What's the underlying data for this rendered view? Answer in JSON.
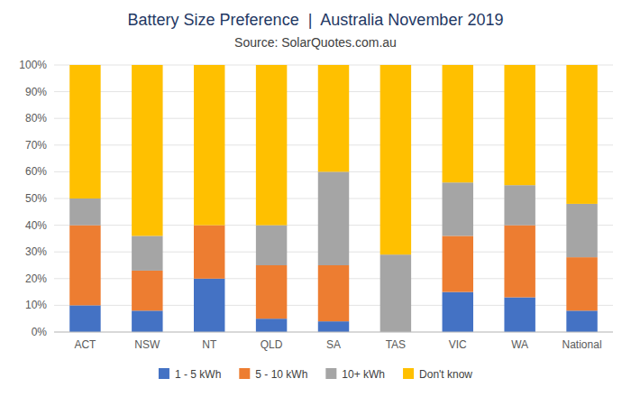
{
  "chart_data": {
    "type": "bar",
    "stacked": true,
    "title": "Battery Size Preference  |  Australia November 2019",
    "subtitle": "Source: SolarQuotes.com.au",
    "categories": [
      "ACT",
      "NSW",
      "NT",
      "QLD",
      "SA",
      "TAS",
      "VIC",
      "WA",
      "National"
    ],
    "series": [
      {
        "name": "1 - 5 kWh",
        "color": "#4472C4",
        "values": [
          10,
          8,
          20,
          5,
          4,
          0,
          15,
          13,
          8
        ]
      },
      {
        "name": "5 - 10 kWh",
        "color": "#ED7D31",
        "values": [
          30,
          15,
          20,
          20,
          21,
          0,
          21,
          27,
          20
        ]
      },
      {
        "name": "10+ kWh",
        "color": "#A5A5A5",
        "values": [
          10,
          13,
          0,
          15,
          35,
          29,
          20,
          15,
          20
        ]
      },
      {
        "name": "Don't know",
        "color": "#FFC000",
        "values": [
          50,
          64,
          60,
          60,
          40,
          71,
          44,
          45,
          52
        ]
      }
    ],
    "ylim": [
      0,
      100
    ],
    "yticks": [
      {
        "value": 0,
        "label": "0%"
      },
      {
        "value": 10,
        "label": "10%"
      },
      {
        "value": 20,
        "label": "20%"
      },
      {
        "value": 30,
        "label": "30%"
      },
      {
        "value": 40,
        "label": "40%"
      },
      {
        "value": 50,
        "label": "50%"
      },
      {
        "value": 60,
        "label": "60%"
      },
      {
        "value": 70,
        "label": "70%"
      },
      {
        "value": 80,
        "label": "80%"
      },
      {
        "value": 90,
        "label": "90%"
      },
      {
        "value": 100,
        "label": "100%"
      }
    ],
    "grid": true,
    "legend": "bottom"
  }
}
